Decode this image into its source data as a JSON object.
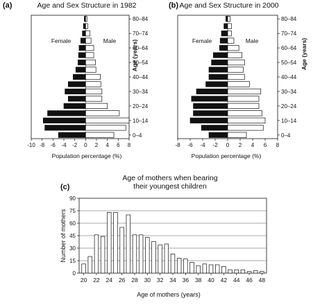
{
  "panels": {
    "a_label": "(a)",
    "b_label": "(b)",
    "c_label": "(c)"
  },
  "chart_data": [
    {
      "type": "bar",
      "orientation": "horizontal",
      "subtype": "population-pyramid",
      "title": "Age and Sex Structure in 1982",
      "xlabel": "Population percentage (%)",
      "ylabel": "Age (years)",
      "female_label": "Female",
      "male_label": "Male",
      "xlim": [
        -10,
        8
      ],
      "xticks": [
        -10,
        -8,
        -6,
        -4,
        -2,
        0,
        2,
        4,
        6,
        8
      ],
      "xtick_labels": [
        "-10",
        "-8",
        "-6",
        "-4",
        "-2",
        "0",
        "2",
        "4",
        "6",
        "8"
      ],
      "ytick_labels": [
        "0–4",
        "10–14",
        "20–24",
        "30–34",
        "40–44",
        "50–54",
        "60–64",
        "70–74",
        "80–84"
      ],
      "categories": [
        "0-4",
        "5-9",
        "10-14",
        "15-19",
        "20-24",
        "25-29",
        "30-34",
        "35-39",
        "40-44",
        "45-49",
        "50-54",
        "55-59",
        "60-64",
        "65-69",
        "70-74",
        "75-79",
        "80-84"
      ],
      "series": [
        {
          "name": "Female",
          "color": "#111111",
          "values": [
            5.0,
            7.5,
            7.8,
            7.0,
            4.0,
            3.2,
            3.8,
            3.2,
            2.3,
            1.8,
            1.4,
            1.3,
            1.2,
            0.9,
            0.6,
            0.4,
            0.25
          ]
        },
        {
          "name": "Male",
          "color": "#ffffff",
          "values": [
            5.2,
            7.4,
            8.0,
            6.2,
            4.0,
            3.0,
            3.0,
            2.8,
            2.7,
            1.9,
            1.8,
            1.5,
            1.5,
            1.0,
            0.8,
            0.4,
            0.25
          ]
        }
      ]
    },
    {
      "type": "bar",
      "orientation": "horizontal",
      "subtype": "population-pyramid",
      "title": "Age and Sex Structure in 2000",
      "xlabel": "Population percentage (%)",
      "ylabel": "Age (years)",
      "female_label": "Female",
      "male_label": "Male",
      "xlim": [
        -8,
        8
      ],
      "xticks": [
        -8,
        -6,
        -4,
        -2,
        0,
        2,
        4,
        6,
        8
      ],
      "xtick_labels": [
        "-8",
        "-6",
        "-4",
        "-2",
        "0",
        "2",
        "4",
        "6",
        "8"
      ],
      "ytick_labels": [
        "0–4",
        "10–14",
        "20–24",
        "30–34",
        "40–44",
        "50–54",
        "60–64",
        "70–74",
        "80–84"
      ],
      "categories": [
        "0-4",
        "5-9",
        "10-14",
        "15-19",
        "20-24",
        "25-29",
        "30-34",
        "35-39",
        "40-44",
        "45-49",
        "50-54",
        "55-59",
        "60-64",
        "65-69",
        "70-74",
        "75-79",
        "80-84"
      ],
      "series": [
        {
          "name": "Female",
          "color": "#111111",
          "values": [
            3.0,
            4.2,
            6.0,
            5.5,
            5.5,
            5.8,
            5.0,
            3.5,
            3.0,
            3.0,
            2.6,
            2.3,
            1.3,
            1.2,
            1.0,
            0.6,
            0.3
          ]
        },
        {
          "name": "Male",
          "color": "#ffffff",
          "values": [
            3.0,
            5.7,
            6.0,
            5.5,
            5.0,
            5.0,
            5.3,
            3.5,
            2.7,
            2.5,
            2.7,
            2.3,
            1.8,
            1.0,
            0.6,
            0.6,
            0.4
          ]
        }
      ]
    },
    {
      "type": "bar",
      "title": "Age of mothers when bearing\ntheir youngest children",
      "xlabel": "Age of mothers  (years)",
      "ylabel": "Number of mothers",
      "ylim": [
        0,
        90
      ],
      "yticks": [
        0,
        15,
        30,
        45,
        60,
        75,
        90
      ],
      "grid": "horizontal",
      "x": [
        20,
        21,
        22,
        23,
        24,
        25,
        26,
        27,
        28,
        29,
        30,
        31,
        32,
        33,
        34,
        35,
        36,
        37,
        38,
        39,
        40,
        41,
        42,
        43,
        44,
        45,
        46,
        47,
        48
      ],
      "xtick_labels": [
        "20",
        "22",
        "24",
        "26",
        "28",
        "30",
        "32",
        "34",
        "36",
        "38",
        "40",
        "42",
        "44",
        "46",
        "48"
      ],
      "values": [
        11,
        20,
        46,
        44,
        73,
        73,
        55,
        70,
        46,
        46,
        43,
        38,
        34,
        35,
        23,
        18,
        17,
        13,
        9,
        11,
        10,
        10,
        8,
        4,
        4,
        4,
        2,
        3,
        2
      ],
      "bar_color": "#ffffff"
    }
  ]
}
